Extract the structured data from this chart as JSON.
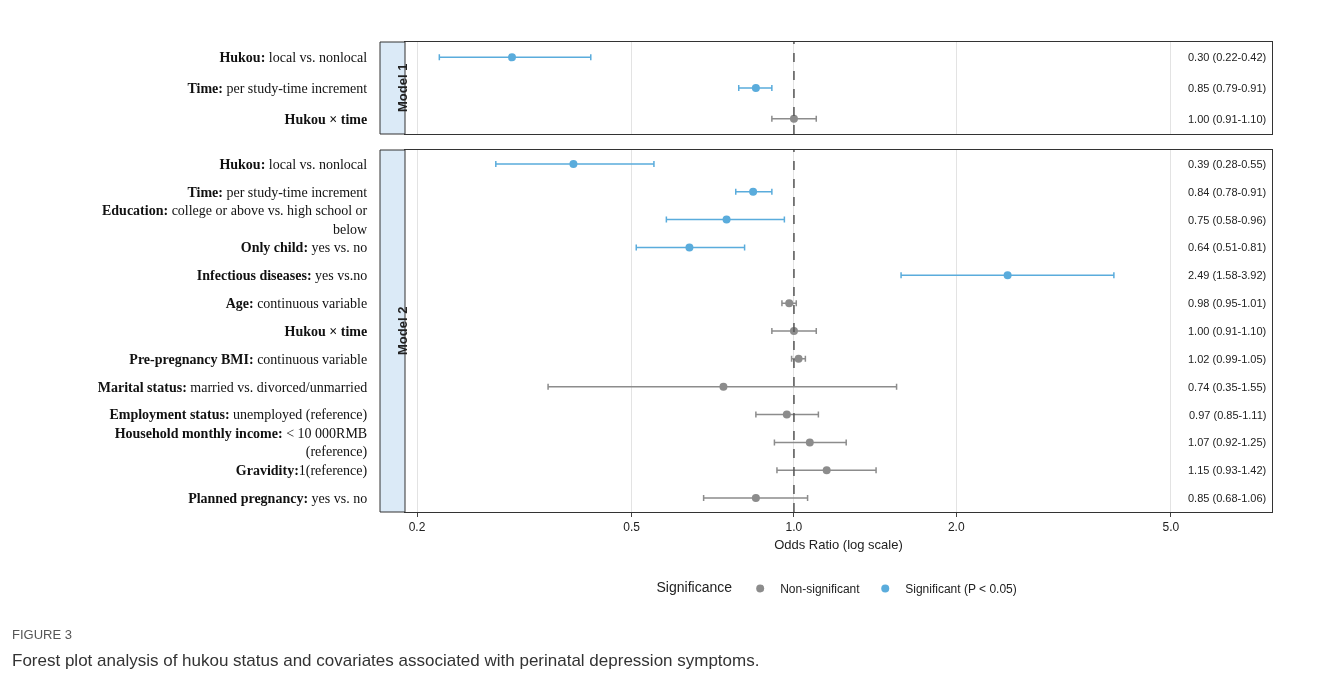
{
  "chart_data": [
    {
      "type": "scatter",
      "title": "Model 1",
      "orientation": "horizontal",
      "log": "x",
      "grid": "x",
      "legend": false,
      "marker": "circle",
      "tick_labels": "y",
      "categories": [
        "Hukou: local vs. nonlocal",
        "Time: per study-time increment",
        "Hukou × time"
      ],
      "series": [
        {
          "color": "#8c8c8c",
          "values": [
            null,
            null,
            1.0
          ],
          "errors": [
            null,
            null,
            [
              0.91,
              1.1
            ]
          ]
        },
        {
          "color": "#5aacdc",
          "values": [
            0.3,
            0.85,
            null
          ],
          "errors": [
            [
              0.22,
              0.42
            ],
            [
              0.79,
              0.91
            ],
            null
          ]
        }
      ],
      "value_labels": [
        "0.30 (0.22-0.42)",
        "0.85 (0.79-0.91)",
        "1.00 (0.91-1.10)"
      ],
      "xlim": [
        0.19,
        7.7
      ],
      "xticks": [
        {
          "value": 0.2,
          "label": null
        },
        {
          "value": 0.5,
          "label": null
        },
        {
          "value": 1,
          "label": null
        },
        {
          "value": 2,
          "label": null
        },
        {
          "value": 5,
          "label": null
        }
      ],
      "ref_lines": [
        {
          "axis": "x",
          "value": 1,
          "line_style": "dashed",
          "color": "#555555"
        }
      ]
    },
    {
      "type": "scatter",
      "title": "Model 2",
      "orientation": "horizontal",
      "log": "x",
      "grid": "x",
      "legend": "bottom",
      "legend_title": "Significance",
      "marker": "circle",
      "xlabel": "Odds Ratio (log scale)",
      "categories": [
        "Hukou: local vs. nonlocal",
        "Time: per study-time increment",
        "Education: college or above vs. high school or below",
        "Only child: yes vs. no",
        "Infectious diseases: yes vs.no",
        "Age: continuous variable",
        "Hukou × time",
        "Pre-pregnancy BMI: continuous variable",
        "Marital status: married vs. divorced/unmarried",
        "Employment status: unemployed (reference)",
        "Household monthly income: < 10 000RMB (reference)",
        "Gravidity:1(reference)",
        "Planned pregnancy: yes vs. no"
      ],
      "series": [
        {
          "name": "Non-significant",
          "color": "#8c8c8c",
          "values": [
            null,
            null,
            null,
            null,
            null,
            0.98,
            1.0,
            1.02,
            0.74,
            0.97,
            1.07,
            1.15,
            0.85
          ],
          "errors": [
            null,
            null,
            null,
            null,
            null,
            [
              0.95,
              1.01
            ],
            [
              0.91,
              1.1
            ],
            [
              0.99,
              1.05
            ],
            [
              0.35,
              1.55
            ],
            [
              0.85,
              1.11
            ],
            [
              0.92,
              1.25
            ],
            [
              0.93,
              1.42
            ],
            [
              0.68,
              1.06
            ]
          ]
        },
        {
          "name": "Significant (P < 0.05)",
          "color": "#5aacdc",
          "values": [
            0.39,
            0.84,
            0.75,
            0.64,
            2.49,
            null,
            null,
            null,
            null,
            null,
            null,
            null,
            null
          ],
          "errors": [
            [
              0.28,
              0.55
            ],
            [
              0.78,
              0.91
            ],
            [
              0.58,
              0.96
            ],
            [
              0.51,
              0.81
            ],
            [
              1.58,
              3.92
            ],
            null,
            null,
            null,
            null,
            null,
            null,
            null,
            null
          ]
        }
      ],
      "value_labels": [
        "0.39 (0.28-0.55)",
        "0.84 (0.78-0.91)",
        "0.75 (0.58-0.96)",
        "0.64 (0.51-0.81)",
        "2.49 (1.58-3.92)",
        "0.98 (0.95-1.01)",
        "1.00 (0.91-1.10)",
        "1.02 (0.99-1.05)",
        "0.74 (0.35-1.55)",
        "0.97 (0.85-1.11)",
        "1.07 (0.92-1.25)",
        "1.15 (0.93-1.42)",
        "0.85 (0.68-1.06)"
      ],
      "xlim": [
        0.19,
        7.7
      ],
      "xticks": [
        0.2,
        0.5,
        {
          "value": 1,
          "label": "1.0"
        },
        {
          "value": 2,
          "label": "2.0"
        },
        {
          "value": 5,
          "label": "5.0"
        }
      ],
      "ref_lines": [
        {
          "axis": "x",
          "value": 1,
          "line_style": "dashed",
          "color": "#555555"
        }
      ],
      "annotations": [
        "FIGURE 3",
        "Forest plot analysis of hukou status and covariates associated with perinatal depression symptoms."
      ]
    }
  ]
}
